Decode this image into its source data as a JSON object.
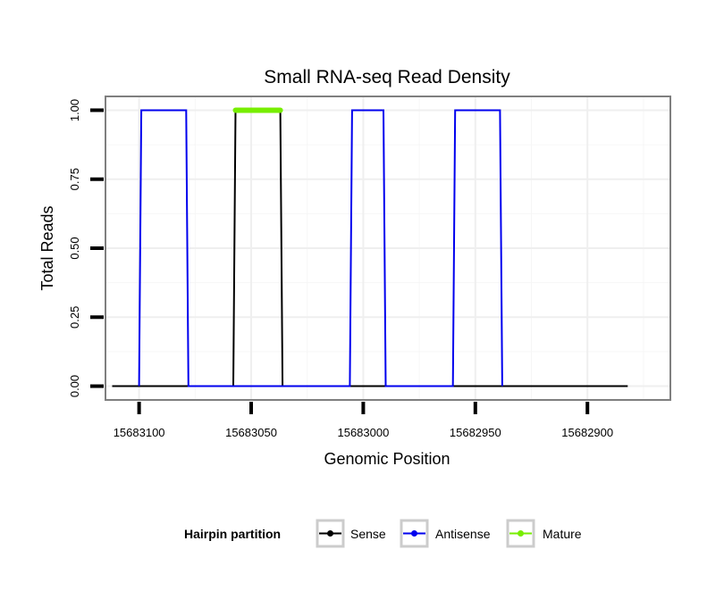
{
  "chart_data": {
    "type": "line",
    "title": "Small RNA-seq Read Density",
    "xlabel": "Genomic Position",
    "ylabel": "Total Reads",
    "x_reversed": true,
    "xlim": [
      15683115,
      15682863
    ],
    "ylim": [
      -0.05,
      1.05
    ],
    "x_ticks": [
      15683100,
      15683050,
      15683000,
      15682950,
      15682900
    ],
    "x_tick_labels": [
      "15683100",
      "15683050",
      "15683000",
      "15682950",
      "15682900"
    ],
    "y_ticks": [
      0,
      0.25,
      0.5,
      0.75,
      1
    ],
    "y_tick_labels": [
      "0.00",
      "0.25",
      "0.50",
      "0.75",
      "1.00"
    ],
    "grid": true,
    "legend": {
      "title": "Hairpin partition",
      "position": "bottom",
      "entries": [
        {
          "label": "Sense",
          "color": "#000000"
        },
        {
          "label": "Antisense",
          "color": "#0000ee"
        },
        {
          "label": "Mature",
          "color": "#77ee00"
        }
      ]
    },
    "series": [
      {
        "name": "Sense",
        "color": "#000000",
        "x": [
          15683112,
          15683058,
          15683057,
          15683037,
          15683036,
          15682882
        ],
        "y": [
          0,
          0,
          1,
          1,
          0,
          0
        ]
      },
      {
        "name": "Antisense",
        "color": "#0000ee",
        "x": [
          15683100,
          15683099,
          15683079,
          15683078,
          15683006,
          15683005,
          15682991,
          15682990,
          15682960,
          15682959,
          15682939,
          15682938
        ],
        "y": [
          0,
          1,
          1,
          0,
          0,
          1,
          1,
          0,
          0,
          1,
          1,
          0
        ]
      },
      {
        "name": "Mature",
        "color": "#77ee00",
        "x": [
          15683057,
          15683037
        ],
        "y": [
          1,
          1
        ]
      }
    ]
  }
}
